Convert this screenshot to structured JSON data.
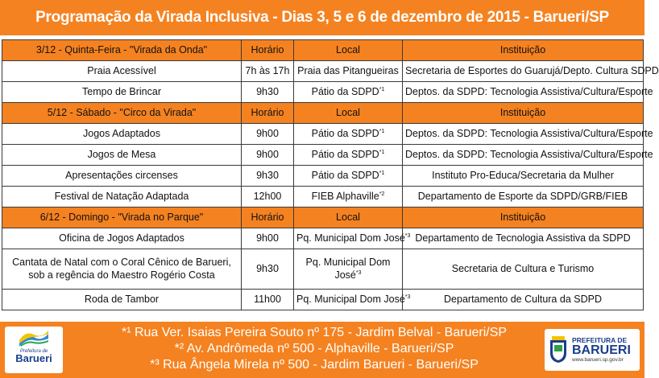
{
  "title": "Programação da Virada Inclusiva - Dias 3, 5 e 6 de dezembro de 2015 - Barueri/SP",
  "column_headers": {
    "horario": "Horário",
    "local": "Local",
    "instituicao": "Instituição"
  },
  "sections": [
    {
      "heading": "3/12 - Quinta-Feira - \"Virada da Onda\"",
      "rows": [
        {
          "activity": "Praia Acessível",
          "time": "7h às 17h",
          "place": "Praia das Pitangueiras",
          "note": "",
          "institution": "Secretaria de Esportes do Guarujá/Depto. Cultura SDPD"
        },
        {
          "activity": "Tempo de Brincar",
          "time": "9h30",
          "place": "Pátio da SDPD",
          "note": "*1",
          "institution": "Deptos. da SDPD: Tecnologia Assistiva/Cultura/Esporte"
        }
      ]
    },
    {
      "heading": "5/12 - Sábado - \"Circo da Virada\"",
      "rows": [
        {
          "activity": "Jogos Adaptados",
          "time": "9h00",
          "place": "Pátio da SDPD",
          "note": "*1",
          "institution": "Deptos. da SDPD: Tecnologia Assistiva/Cultura/Esporte"
        },
        {
          "activity": "Jogos de Mesa",
          "time": "9h00",
          "place": "Pátio da SDPD",
          "note": "*1",
          "institution": "Deptos. da SDPD: Tecnologia Assistiva/Cultura/Esporte"
        },
        {
          "activity": "Apresentações circenses",
          "time": "9h30",
          "place": "Pátio da SDPD",
          "note": "*1",
          "institution": "Instituto Pro-Educa/Secretaria da Mulher"
        },
        {
          "activity": "Festival de Natação Adaptada",
          "time": "12h00",
          "place": "FIEB Alphaville",
          "note": "*2",
          "institution": "Departamento de Esporte da SDPD/GRB/FIEB"
        }
      ]
    },
    {
      "heading": "6/12 - Domingo - \"Virada no Parque\"",
      "rows": [
        {
          "activity": "Oficina de Jogos Adaptados",
          "time": "9h00",
          "place": "Pq. Municipal Dom José",
          "note": "*3",
          "institution": "Departamento de Tecnologia Assistiva da SDPD"
        },
        {
          "activity": "Cantata de Natal com o Coral Cênico de Barueri, sob a regência do Maestro Rogério Costa",
          "time": "9h30",
          "place": "Pq. Municipal Dom José",
          "note": "*3",
          "institution": "Secretaria de Cultura e Turismo",
          "tall": true
        },
        {
          "activity": "Roda de Tambor",
          "time": "11h00",
          "place": "Pq. Municipal Dom José",
          "note": "*3",
          "institution": "Departamento de Cultura da SDPD"
        }
      ]
    }
  ],
  "footnotes": [
    "*¹ Rua Ver. Isaias Pereira Souto nº 175 - Jardim Belval - Barueri/SP",
    "*² Av. Andrômeda nº 500 - Alphaville - Barueri/SP",
    "*³ Rua Ângela Mirela nº 500 - Jardim Barueri - Barueri/SP"
  ],
  "logo_left": {
    "line1": "Prefeitura de",
    "line2": "Barueri"
  },
  "logo_right": {
    "line1": "PREFEITURA DE",
    "line2": "BARUERI",
    "line3": "www.barueri.sp.gov.br"
  },
  "colors": {
    "accent": "#f58220",
    "brand_blue": "#1a3e8c"
  }
}
